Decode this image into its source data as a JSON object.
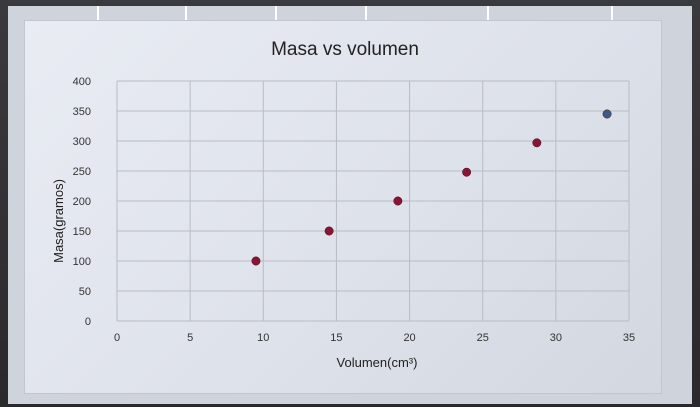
{
  "chart_data": {
    "type": "scatter",
    "title": "Masa vs volumen",
    "xlabel": "Volumen(cm³)",
    "ylabel": "Masa(gramos)",
    "xlim": [
      0,
      35
    ],
    "ylim": [
      0,
      400
    ],
    "xticks": [
      0,
      5,
      10,
      15,
      20,
      25,
      30,
      35
    ],
    "yticks": [
      0,
      50,
      100,
      150,
      200,
      250,
      300,
      350,
      400
    ],
    "grid": true,
    "legend": "none",
    "series": [
      {
        "color": "#8a1435",
        "points": [
          {
            "x": 9.5,
            "y": 100
          },
          {
            "x": 14.5,
            "y": 150
          },
          {
            "x": 19.2,
            "y": 200
          },
          {
            "x": 23.9,
            "y": 248
          },
          {
            "x": 28.7,
            "y": 297
          },
          {
            "x": 33.5,
            "y": 345
          }
        ]
      }
    ],
    "point_colors": [
      "#8a1435",
      "#8a1435",
      "#8a1435",
      "#8a1435",
      "#8a1435",
      "#3f5a86"
    ]
  }
}
